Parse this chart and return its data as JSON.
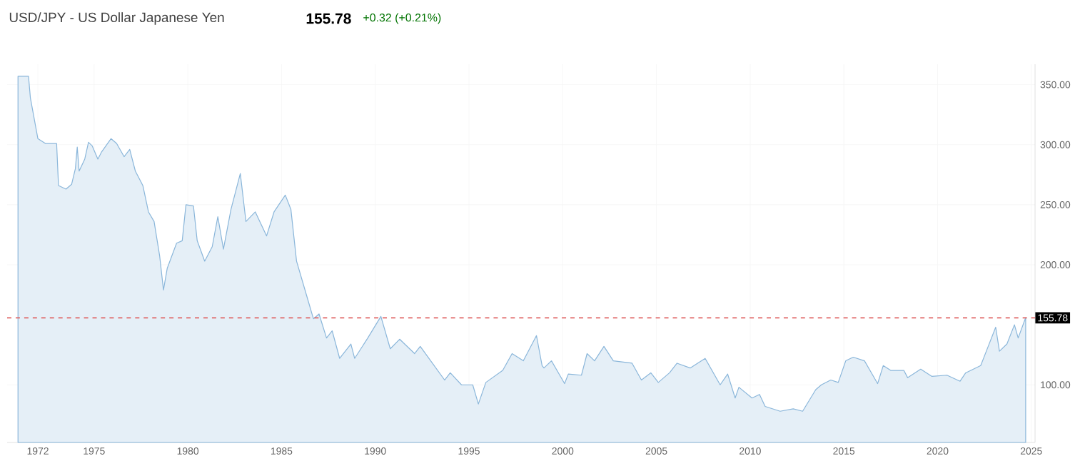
{
  "chart_data": {
    "type": "area",
    "title": "USD/JPY - US Dollar Japanese Yen",
    "annotations": [
      "155.78",
      "+0.32 (+0.21%)"
    ],
    "series": [
      {
        "color": "#8ab6da",
        "x": [
          1970.94,
          1971.5,
          1971.6,
          1972.0,
          1972.4,
          1973.0,
          1973.1,
          1973.5,
          1973.8,
          1974.0,
          1974.1,
          1974.2,
          1974.5,
          1974.7,
          1974.9,
          1975.2,
          1975.4,
          1975.9,
          1976.2,
          1976.6,
          1976.9,
          1977.2,
          1977.6,
          1977.9,
          1978.2,
          1978.5,
          1978.7,
          1978.9,
          1979.4,
          1979.7,
          1979.9,
          1980.3,
          1980.5,
          1980.9,
          1981.3,
          1981.6,
          1981.9,
          1982.3,
          1982.8,
          1983.1,
          1983.6,
          1983.9,
          1984.2,
          1984.6,
          1985.2,
          1985.5,
          1985.8,
          1986.4,
          1986.7,
          1987.0,
          1987.4,
          1987.7,
          1988.1,
          1988.7,
          1988.9,
          1989.6,
          1990.3,
          1990.8,
          1991.3,
          1992.1,
          1992.4,
          1993.7,
          1994.0,
          1994.6,
          1995.2,
          1995.5,
          1995.9,
          1996.8,
          1997.3,
          1997.9,
          1998.6,
          1998.9,
          1999.0,
          1999.4,
          2000.1,
          2000.3,
          2001.0,
          2001.3,
          2001.7,
          2002.2,
          2002.7,
          2003.7,
          2004.2,
          2004.7,
          2005.1,
          2005.7,
          2006.1,
          2006.8,
          2007.6,
          2008.4,
          2008.8,
          2009.2,
          2009.4,
          2010.1,
          2010.5,
          2010.8,
          2011.6,
          2012.3,
          2012.8,
          2013.5,
          2013.8,
          2014.3,
          2014.7,
          2015.1,
          2015.5,
          2016.1,
          2016.8,
          2017.1,
          2017.5,
          2018.2,
          2018.4,
          2019.1,
          2019.7,
          2020.5,
          2021.2,
          2021.5,
          2022.3,
          2022.7,
          2023.1,
          2023.3,
          2023.7,
          2024.1,
          2024.3,
          2024.7
        ],
        "values": [
          357,
          357,
          339,
          305,
          301,
          301,
          266,
          263,
          267,
          280,
          298,
          278,
          288,
          302,
          299,
          288,
          294,
          305,
          301,
          290,
          296,
          278,
          266,
          244,
          236,
          207,
          179,
          197,
          218,
          220,
          250,
          249,
          220,
          203,
          215,
          240,
          213,
          246,
          276,
          236,
          244,
          234,
          224,
          244,
          258,
          246,
          203,
          171,
          155,
          159,
          139,
          145,
          122,
          134,
          122,
          139,
          157,
          130,
          138,
          126,
          132,
          104,
          110,
          100,
          100,
          84,
          102,
          112,
          126,
          120,
          141,
          116,
          114,
          120,
          101,
          109,
          108,
          126,
          120,
          132,
          120,
          118,
          104,
          110,
          102,
          110,
          118,
          114,
          122,
          100,
          109,
          89,
          98,
          89,
          92,
          82,
          78,
          80,
          78,
          96,
          100,
          104,
          102,
          120,
          123,
          120,
          101,
          116,
          112,
          112,
          106,
          113,
          107,
          108,
          103,
          110,
          116,
          132,
          148,
          128,
          134,
          150,
          139,
          156
        ]
      }
    ],
    "xlim": [
      1970.36,
      2025.2
    ],
    "xticks": [
      1972,
      1975,
      1980,
      1985,
      1990,
      1995,
      2000,
      2005,
      2010,
      2015,
      2020,
      2025
    ],
    "ylim": [
      52,
      367
    ],
    "yticks": [
      {
        "value": 100,
        "label": "100.00"
      },
      {
        "value": 200,
        "label": "200.00"
      },
      {
        "value": 250,
        "label": "250.00"
      },
      {
        "value": 300,
        "label": "300.00"
      },
      {
        "value": 350,
        "label": "350.00"
      }
    ],
    "grid": true,
    "ref_lines": [
      {
        "axis": "y",
        "value": 155.78,
        "label": "155.78",
        "color": "#e06666",
        "line_style": "dashed"
      }
    ]
  }
}
